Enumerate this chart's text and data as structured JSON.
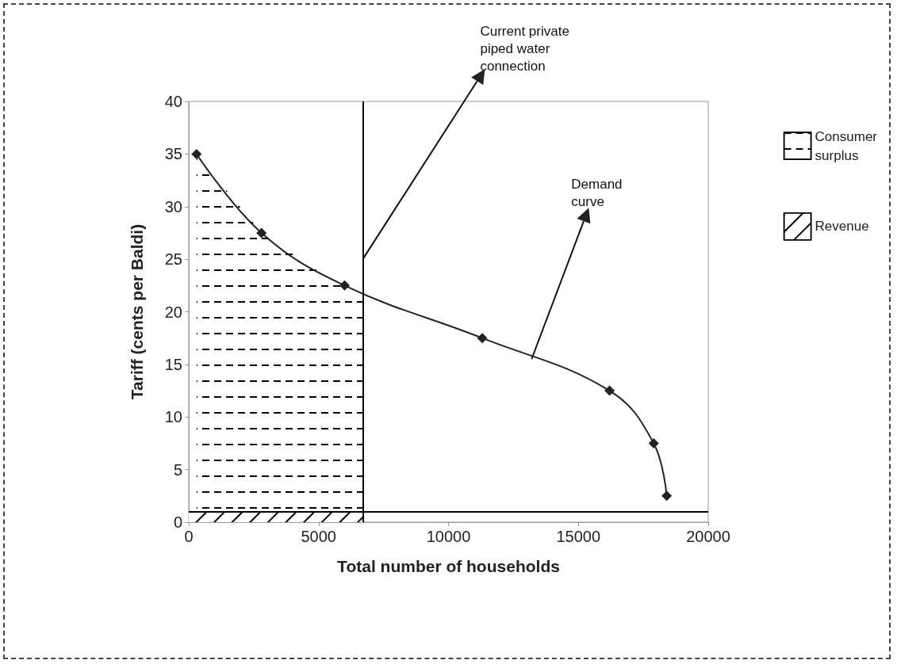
{
  "chart_data": {
    "type": "line",
    "xlabel": "Total number of households",
    "ylabel": "Tariff (cents per Baldi)",
    "xlim": [
      0,
      20000
    ],
    "xticks": [
      0,
      5000,
      10000,
      15000,
      20000
    ],
    "ylim": [
      0,
      40
    ],
    "yticks": [
      0,
      5,
      10,
      15,
      20,
      25,
      30,
      35,
      40
    ],
    "grid": false,
    "legend": "right",
    "marker": "diamond",
    "line_style": "solid",
    "series": [
      {
        "name": "Consumer surplus",
        "type": "area",
        "marker": "none",
        "color": "#000000",
        "x": [
          300,
          2800,
          6000,
          6700
        ],
        "values": [
          35,
          27.5,
          22.5,
          22
        ]
      },
      {
        "name": "Revenue",
        "type": "area",
        "marker": "none",
        "color": "#000000",
        "x": [
          0,
          6700
        ],
        "values": [
          1,
          1
        ]
      },
      {
        "color": "#222222",
        "x": [
          300,
          2800,
          6000,
          11300,
          16200,
          17900,
          18400
        ],
        "values": [
          35,
          27.5,
          22.5,
          17.5,
          12.5,
          7.5,
          2.5
        ]
      }
    ],
    "ref_lines": [
      {
        "axis": "x",
        "value": 6700,
        "color": "#000000"
      },
      {
        "axis": "y",
        "value": 1,
        "color": "#000000"
      }
    ],
    "annotations": [
      {
        "text": "Current private\npiped water\nconnection",
        "x": 6700,
        "y": 25
      },
      {
        "text": "Demand\ncurve",
        "x": 13200,
        "y": 15.5
      }
    ]
  }
}
